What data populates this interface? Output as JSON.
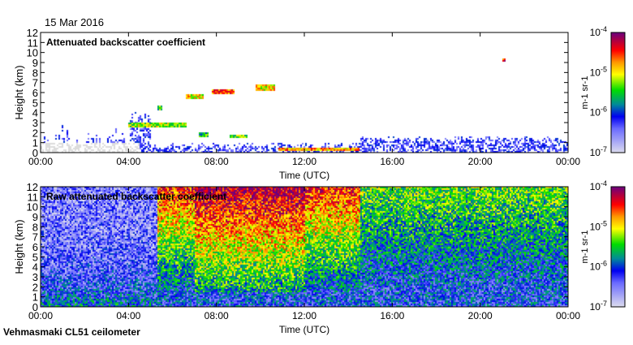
{
  "date": "15 Mar 2016",
  "footer": "Vehmasmaki CL51 ceilometer",
  "chart_data": [
    {
      "type": "heatmap",
      "title": "Attenuated backscatter coefficient",
      "xlabel": "Time (UTC)",
      "ylabel": "Height (km)",
      "xticks": [
        "00:00",
        "04:00",
        "08:00",
        "12:00",
        "16:00",
        "20:00",
        "00:00"
      ],
      "yticks": [
        "0",
        "1",
        "2",
        "3",
        "4",
        "5",
        "6",
        "7",
        "8",
        "9",
        "10",
        "11",
        "12"
      ],
      "xlim_hours": [
        0,
        24
      ],
      "ylim_km": [
        0,
        12
      ],
      "colorbar": {
        "label": "m-1 sr-1",
        "ticks": [
          "10-7",
          "10-6",
          "10-5",
          "10-4"
        ],
        "scale": "log",
        "range": [
          1e-07,
          0.0001
        ]
      },
      "features": [
        {
          "name": "cloud-layer",
          "t0": 4.0,
          "t1": 6.6,
          "h0": 2.6,
          "h1": 3.0,
          "level": -5.2
        },
        {
          "name": "cloud-patch",
          "t0": 5.3,
          "t1": 5.5,
          "h0": 4.3,
          "h1": 4.7,
          "level": -5.5
        },
        {
          "name": "cloud-patch",
          "t0": 6.6,
          "t1": 7.4,
          "h0": 5.4,
          "h1": 5.8,
          "level": -5.0
        },
        {
          "name": "cloud-patch",
          "t0": 7.8,
          "t1": 8.8,
          "h0": 5.9,
          "h1": 6.3,
          "level": -4.6
        },
        {
          "name": "cloud-patch",
          "t0": 9.8,
          "t1": 10.6,
          "h0": 6.2,
          "h1": 6.8,
          "level": -5.0
        },
        {
          "name": "cloud-patch",
          "t0": 8.6,
          "t1": 9.4,
          "h0": 1.5,
          "h1": 1.8,
          "level": -5.3
        },
        {
          "name": "cloud-patch",
          "t0": 7.2,
          "t1": 7.6,
          "h0": 1.7,
          "h1": 2.0,
          "level": -5.6
        },
        {
          "name": "low-cloud",
          "t0": 10.8,
          "t1": 14.5,
          "h0": 0.2,
          "h1": 0.45,
          "level": -4.8
        },
        {
          "name": "cloud-patch",
          "t0": 21.0,
          "t1": 21.1,
          "h0": 9.1,
          "h1": 9.4,
          "level": -4.5
        }
      ]
    },
    {
      "type": "heatmap",
      "title": "Raw attenuated backscatter coefficient",
      "xlabel": "Time (UTC)",
      "ylabel": "Height (km)",
      "xticks": [
        "00:00",
        "04:00",
        "08:00",
        "12:00",
        "16:00",
        "20:00",
        "00:00"
      ],
      "yticks": [
        "0",
        "1",
        "2",
        "3",
        "4",
        "5",
        "6",
        "7",
        "8",
        "9",
        "10",
        "11",
        "12"
      ],
      "xlim_hours": [
        0,
        24
      ],
      "ylim_km": [
        0,
        12
      ],
      "colorbar": {
        "label": "m-1 sr-1",
        "ticks": [
          "10-7",
          "10-6",
          "10-5",
          "10-4"
        ],
        "scale": "log",
        "range": [
          1e-07,
          0.0001
        ]
      }
    }
  ]
}
